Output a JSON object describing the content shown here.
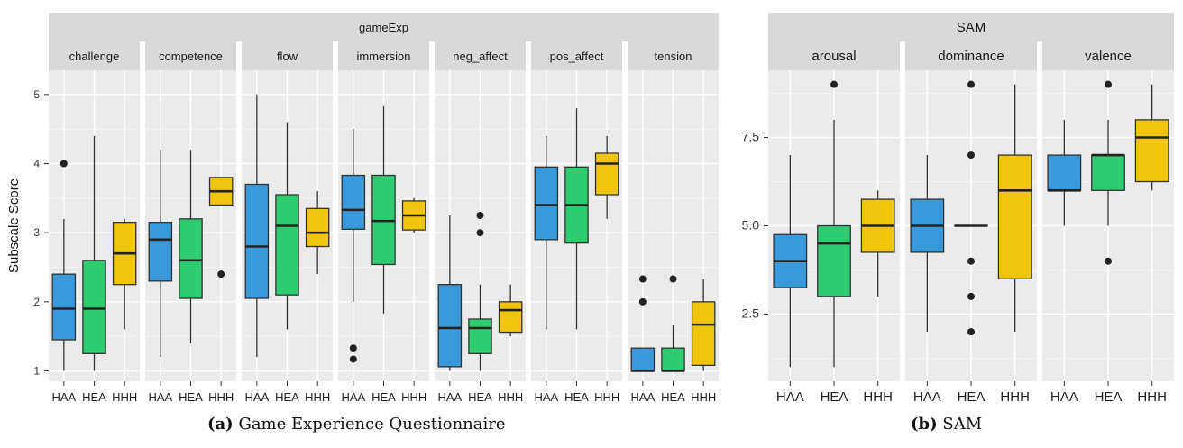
{
  "captions": [
    {
      "label": "(a)",
      "text": "Game Experience Questionnaire"
    },
    {
      "label": "(b)",
      "text": "SAM"
    }
  ],
  "chart_data": [
    {
      "type": "boxplot",
      "strip_title": "gameExp",
      "ylabel": "Subscale Score",
      "ylim": [
        0.85,
        5.35
      ],
      "yticks": [
        1,
        2,
        3,
        4,
        5
      ],
      "categories": [
        "HAA",
        "HEA",
        "HHH"
      ],
      "colors": {
        "HAA": "#3a9ad9",
        "HEA": "#2ecc71",
        "HHH": "#f1c40f"
      },
      "grid": true,
      "legend": "none",
      "facets": [
        {
          "name": "challenge",
          "boxes": [
            {
              "group": "HAA",
              "min": 1.0,
              "q1": 1.45,
              "median": 1.9,
              "q3": 2.4,
              "max": 3.2,
              "outliers": [
                4.0
              ]
            },
            {
              "group": "HEA",
              "min": 1.0,
              "q1": 1.25,
              "median": 1.9,
              "q3": 2.6,
              "max": 4.4,
              "outliers": []
            },
            {
              "group": "HHH",
              "min": 1.6,
              "q1": 2.25,
              "median": 2.7,
              "q3": 3.15,
              "max": 3.2,
              "outliers": []
            }
          ]
        },
        {
          "name": "competence",
          "boxes": [
            {
              "group": "HAA",
              "min": 1.2,
              "q1": 2.3,
              "median": 2.9,
              "q3": 3.15,
              "max": 4.2,
              "outliers": []
            },
            {
              "group": "HEA",
              "min": 1.4,
              "q1": 2.05,
              "median": 2.6,
              "q3": 3.2,
              "max": 4.2,
              "outliers": []
            },
            {
              "group": "HHH",
              "min": 3.4,
              "q1": 3.4,
              "median": 3.6,
              "q3": 3.8,
              "max": 3.8,
              "outliers": [
                2.4
              ]
            }
          ]
        },
        {
          "name": "flow",
          "boxes": [
            {
              "group": "HAA",
              "min": 1.2,
              "q1": 2.05,
              "median": 2.8,
              "q3": 3.7,
              "max": 5.0,
              "outliers": []
            },
            {
              "group": "HEA",
              "min": 1.6,
              "q1": 2.1,
              "median": 3.1,
              "q3": 3.55,
              "max": 4.6,
              "outliers": []
            },
            {
              "group": "HHH",
              "min": 2.4,
              "q1": 2.8,
              "median": 3.0,
              "q3": 3.35,
              "max": 3.6,
              "outliers": []
            }
          ]
        },
        {
          "name": "immersion",
          "boxes": [
            {
              "group": "HAA",
              "min": 2.0,
              "q1": 3.05,
              "median": 3.33,
              "q3": 3.83,
              "max": 4.5,
              "outliers": [
                1.33,
                1.17
              ]
            },
            {
              "group": "HEA",
              "min": 1.83,
              "q1": 2.54,
              "median": 3.17,
              "q3": 3.83,
              "max": 4.83,
              "outliers": []
            },
            {
              "group": "HHH",
              "min": 3.0,
              "q1": 3.04,
              "median": 3.25,
              "q3": 3.46,
              "max": 3.5,
              "outliers": []
            }
          ]
        },
        {
          "name": "neg_affect",
          "boxes": [
            {
              "group": "HAA",
              "min": 1.0,
              "q1": 1.06,
              "median": 1.62,
              "q3": 2.25,
              "max": 3.25,
              "outliers": []
            },
            {
              "group": "HEA",
              "min": 1.0,
              "q1": 1.25,
              "median": 1.62,
              "q3": 1.75,
              "max": 2.25,
              "outliers": [
                3.25,
                3.0
              ]
            },
            {
              "group": "HHH",
              "min": 1.5,
              "q1": 1.56,
              "median": 1.88,
              "q3": 2.0,
              "max": 2.25,
              "outliers": []
            }
          ]
        },
        {
          "name": "pos_affect",
          "boxes": [
            {
              "group": "HAA",
              "min": 1.6,
              "q1": 2.9,
              "median": 3.4,
              "q3": 3.95,
              "max": 4.4,
              "outliers": []
            },
            {
              "group": "HEA",
              "min": 1.6,
              "q1": 2.85,
              "median": 3.4,
              "q3": 3.95,
              "max": 4.8,
              "outliers": []
            },
            {
              "group": "HHH",
              "min": 3.2,
              "q1": 3.55,
              "median": 4.0,
              "q3": 4.15,
              "max": 4.4,
              "outliers": []
            }
          ]
        },
        {
          "name": "tension",
          "boxes": [
            {
              "group": "HAA",
              "min": 1.0,
              "q1": 1.0,
              "median": 1.0,
              "q3": 1.33,
              "max": 1.33,
              "outliers": [
                2.33,
                2.0
              ]
            },
            {
              "group": "HEA",
              "min": 1.0,
              "q1": 1.0,
              "median": 1.0,
              "q3": 1.33,
              "max": 1.67,
              "outliers": [
                2.33
              ]
            },
            {
              "group": "HHH",
              "min": 1.0,
              "q1": 1.08,
              "median": 1.67,
              "q3": 2.0,
              "max": 2.33,
              "outliers": []
            }
          ]
        }
      ]
    },
    {
      "type": "boxplot",
      "strip_title": "SAM",
      "ylabel": "",
      "ylim": [
        0.6,
        9.4
      ],
      "yticks": [
        2.5,
        5.0,
        7.5
      ],
      "ytick_labels": [
        "2.5",
        "5.0",
        "7.5"
      ],
      "categories": [
        "HAA",
        "HEA",
        "HHH"
      ],
      "colors": {
        "HAA": "#3a9ad9",
        "HEA": "#2ecc71",
        "HHH": "#f1c40f"
      },
      "grid": true,
      "legend": "none",
      "facets": [
        {
          "name": "arousal",
          "boxes": [
            {
              "group": "HAA",
              "min": 1.0,
              "q1": 3.25,
              "median": 4.0,
              "q3": 4.75,
              "max": 7.0,
              "outliers": []
            },
            {
              "group": "HEA",
              "min": 1.0,
              "q1": 3.0,
              "median": 4.5,
              "q3": 5.0,
              "max": 8.0,
              "outliers": [
                9.0
              ]
            },
            {
              "group": "HHH",
              "min": 3.0,
              "q1": 4.25,
              "median": 5.0,
              "q3": 5.75,
              "max": 6.0,
              "outliers": []
            }
          ]
        },
        {
          "name": "dominance",
          "boxes": [
            {
              "group": "HAA",
              "min": 2.0,
              "q1": 4.25,
              "median": 5.0,
              "q3": 5.75,
              "max": 7.0,
              "outliers": []
            },
            {
              "group": "HEA",
              "min": 5.0,
              "q1": 5.0,
              "median": 5.0,
              "q3": 5.0,
              "max": 5.0,
              "outliers": [
                9.0,
                7.0,
                4.0,
                3.0,
                2.0
              ]
            },
            {
              "group": "HHH",
              "min": 2.0,
              "q1": 3.5,
              "median": 6.0,
              "q3": 7.0,
              "max": 9.0,
              "outliers": []
            }
          ]
        },
        {
          "name": "valence",
          "boxes": [
            {
              "group": "HAA",
              "min": 5.0,
              "q1": 6.0,
              "median": 6.0,
              "q3": 7.0,
              "max": 8.0,
              "outliers": []
            },
            {
              "group": "HEA",
              "min": 5.0,
              "q1": 6.0,
              "median": 7.0,
              "q3": 7.0,
              "max": 8.0,
              "outliers": [
                9.0,
                4.0
              ]
            },
            {
              "group": "HHH",
              "min": 6.0,
              "q1": 6.25,
              "median": 7.5,
              "q3": 8.0,
              "max": 9.0,
              "outliers": []
            }
          ]
        }
      ]
    }
  ]
}
